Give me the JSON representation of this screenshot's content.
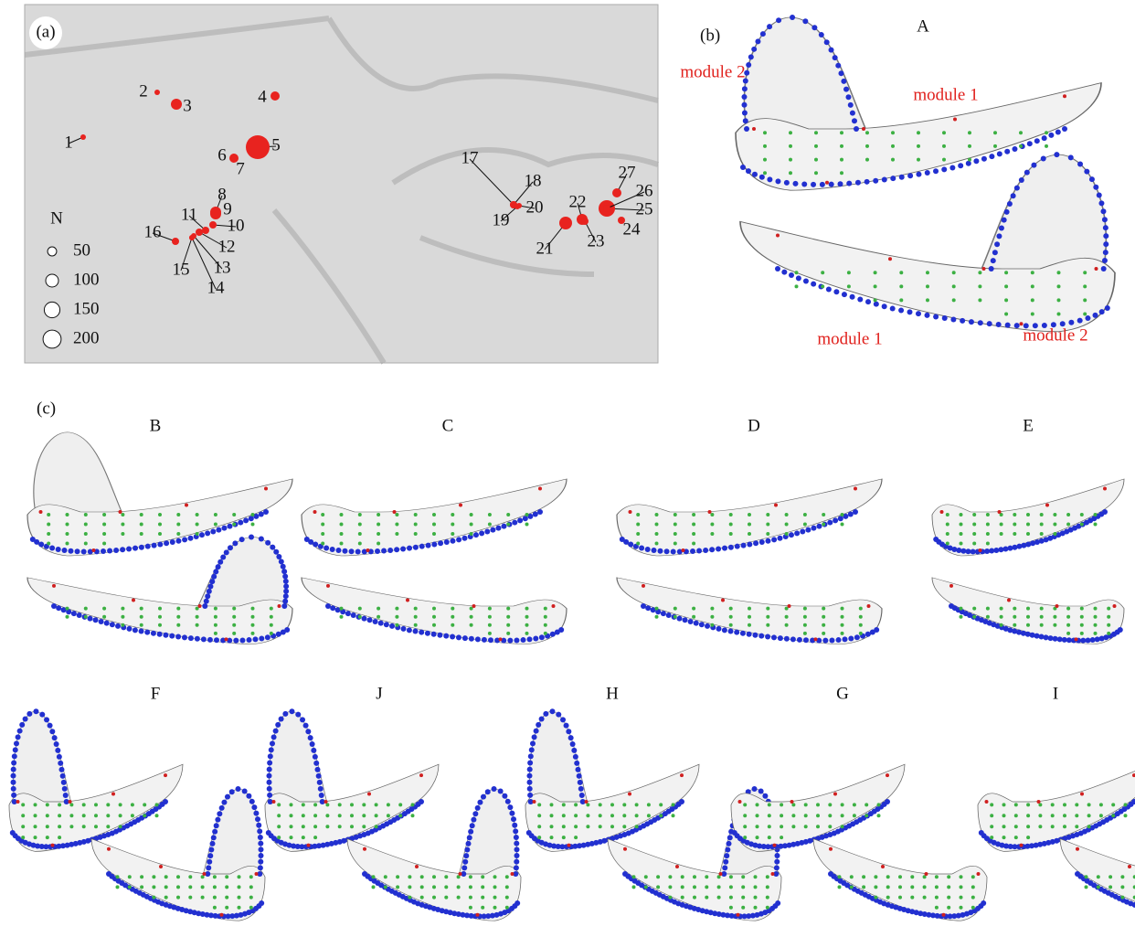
{
  "panel_a": {
    "label": "(a)",
    "sites": [
      "1",
      "2",
      "3",
      "4",
      "5",
      "6",
      "7",
      "8",
      "9",
      "10",
      "11",
      "12",
      "13",
      "14",
      "15",
      "16",
      "17",
      "18",
      "19",
      "20",
      "21",
      "22",
      "23",
      "24",
      "25",
      "26",
      "27"
    ],
    "legend": {
      "title": "N",
      "sizes": [
        50,
        100,
        150,
        200
      ]
    }
  },
  "panel_b": {
    "label": "(b)",
    "view": "A",
    "modules": [
      "module 2",
      "module 1",
      "module 1",
      "module 2"
    ]
  },
  "panel_c": {
    "label": "(c)",
    "views": [
      "B",
      "C",
      "D",
      "E",
      "F",
      "J",
      "H",
      "G",
      "I"
    ]
  }
}
